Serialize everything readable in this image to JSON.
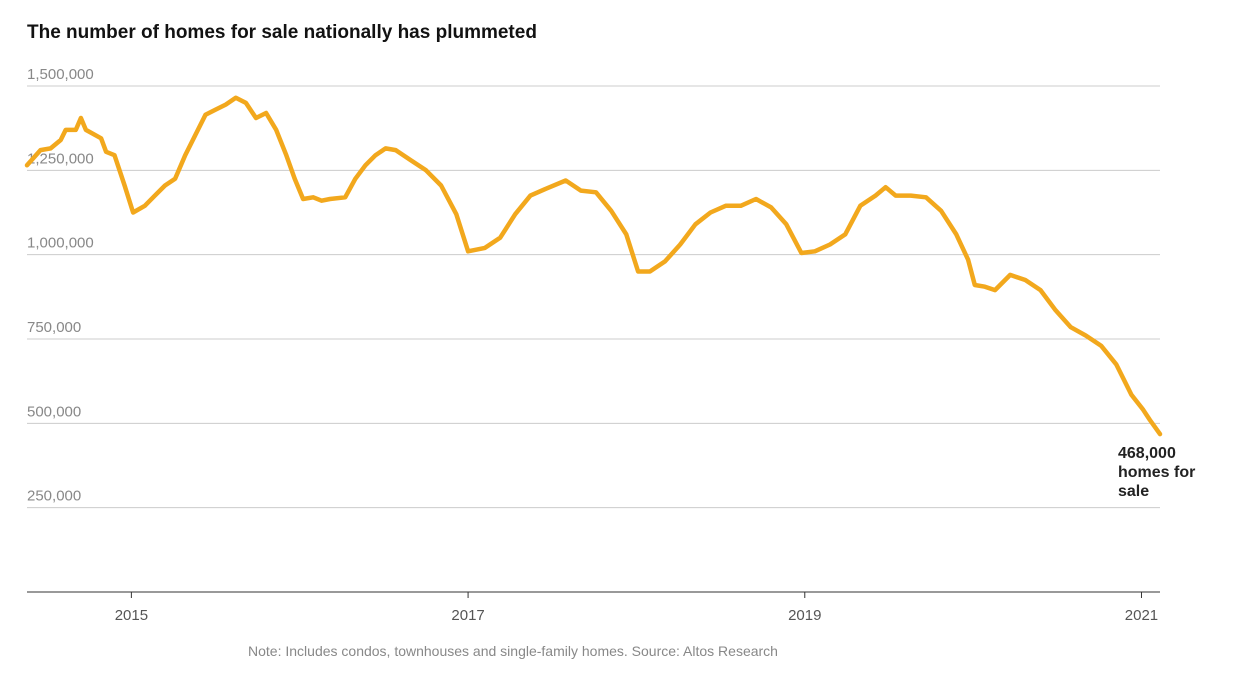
{
  "chart_data": {
    "type": "line",
    "title": "The number of homes for sale nationally has plummeted",
    "note": "Note: Includes condos, townhouses and single-family homes. Source: Altos Research",
    "annotation": [
      "468,000",
      "homes for",
      "sale"
    ],
    "x": [
      2014.38,
      2014.46,
      2014.52,
      2014.58,
      2014.61,
      2014.67,
      2014.7,
      2014.73,
      2014.82,
      2014.85,
      2014.9,
      2014.96,
      2015.01,
      2015.08,
      2015.14,
      2015.2,
      2015.26,
      2015.32,
      2015.38,
      2015.44,
      2015.5,
      2015.56,
      2015.62,
      2015.68,
      2015.74,
      2015.8,
      2015.86,
      2015.92,
      2015.97,
      2016.02,
      2016.08,
      2016.13,
      2016.18,
      2016.27,
      2016.33,
      2016.39,
      2016.45,
      2016.51,
      2016.57,
      2016.66,
      2016.75,
      2016.84,
      2016.93,
      2017.0,
      2017.1,
      2017.19,
      2017.28,
      2017.37,
      2017.46,
      2017.58,
      2017.67,
      2017.76,
      2017.85,
      2017.94,
      2018.01,
      2018.08,
      2018.17,
      2018.26,
      2018.35,
      2018.44,
      2018.53,
      2018.62,
      2018.71,
      2018.8,
      2018.89,
      2018.98,
      2019.06,
      2019.15,
      2019.24,
      2019.33,
      2019.42,
      2019.48,
      2019.54,
      2019.63,
      2019.72,
      2019.81,
      2019.9,
      2019.97,
      2020.01,
      2020.07,
      2020.13,
      2020.22,
      2020.31,
      2020.4,
      2020.49,
      2020.58,
      2020.67,
      2020.76,
      2020.85,
      2020.94,
      2021.01,
      2021.05,
      2021.11
    ],
    "series": [
      {
        "name": "Homes for sale",
        "color": "#f2a81d",
        "values": [
          1265000,
          1310000,
          1315000,
          1340000,
          1370000,
          1370000,
          1405000,
          1370000,
          1345000,
          1305000,
          1295000,
          1205000,
          1125000,
          1145000,
          1175000,
          1205000,
          1225000,
          1295000,
          1355000,
          1415000,
          1430000,
          1445000,
          1465000,
          1450000,
          1405000,
          1420000,
          1370000,
          1295000,
          1225000,
          1165000,
          1170000,
          1160000,
          1165000,
          1170000,
          1225000,
          1265000,
          1295000,
          1315000,
          1310000,
          1280000,
          1250000,
          1205000,
          1120000,
          1010000,
          1020000,
          1050000,
          1120000,
          1175000,
          1195000,
          1220000,
          1190000,
          1185000,
          1130000,
          1060000,
          950000,
          950000,
          980000,
          1030000,
          1090000,
          1125000,
          1145000,
          1145000,
          1165000,
          1140000,
          1090000,
          1005000,
          1010000,
          1030000,
          1060000,
          1145000,
          1175000,
          1200000,
          1175000,
          1175000,
          1170000,
          1130000,
          1060000,
          985000,
          910000,
          905000,
          895000,
          940000,
          925000,
          895000,
          835000,
          785000,
          760000,
          730000,
          675000,
          585000,
          540000,
          510000,
          468000
        ]
      }
    ],
    "xlim": [
      2014.38,
      2021.11
    ],
    "xticks": [
      2015,
      2017,
      2019,
      2021
    ],
    "ylim": [
      0,
      1500000
    ],
    "yticks": [
      {
        "value": 250000,
        "label": "250,000"
      },
      {
        "value": 500000,
        "label": "500,000"
      },
      {
        "value": 750000,
        "label": "750,000"
      },
      {
        "value": 1000000,
        "label": "1,000,000"
      },
      {
        "value": 1250000,
        "label": "1,250,000"
      },
      {
        "value": 1500000,
        "label": "1,500,000"
      }
    ],
    "grid": true
  }
}
